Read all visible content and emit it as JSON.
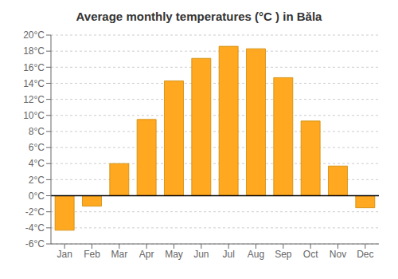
{
  "chart_data": {
    "type": "bar",
    "title": "Average monthly temperatures (°C ) in Băla",
    "categories": [
      "Jan",
      "Feb",
      "Mar",
      "Apr",
      "May",
      "Jun",
      "Jul",
      "Aug",
      "Sep",
      "Oct",
      "Nov",
      "Dec"
    ],
    "values": [
      -4.3,
      -1.3,
      4.0,
      9.5,
      14.3,
      17.1,
      18.6,
      18.3,
      14.7,
      9.3,
      3.7,
      -1.5
    ],
    "color": "#FFA820",
    "ylim": [
      -6,
      20
    ],
    "yticks": [
      {
        "value": -6,
        "label": "-6°C"
      },
      {
        "value": -4,
        "label": "-4°C"
      },
      {
        "value": -2,
        "label": "-2°C"
      },
      {
        "value": 0,
        "label": "0°C"
      },
      {
        "value": 2,
        "label": "2°C"
      },
      {
        "value": 4,
        "label": "4°C"
      },
      {
        "value": 6,
        "label": "6°C"
      },
      {
        "value": 8,
        "label": "8°C"
      },
      {
        "value": 10,
        "label": "10°C"
      },
      {
        "value": 12,
        "label": "12°C"
      },
      {
        "value": 14,
        "label": "14°C"
      },
      {
        "value": 16,
        "label": "16°C"
      },
      {
        "value": 18,
        "label": "18°C"
      },
      {
        "value": 20,
        "label": "20°C"
      }
    ],
    "grid": true
  }
}
